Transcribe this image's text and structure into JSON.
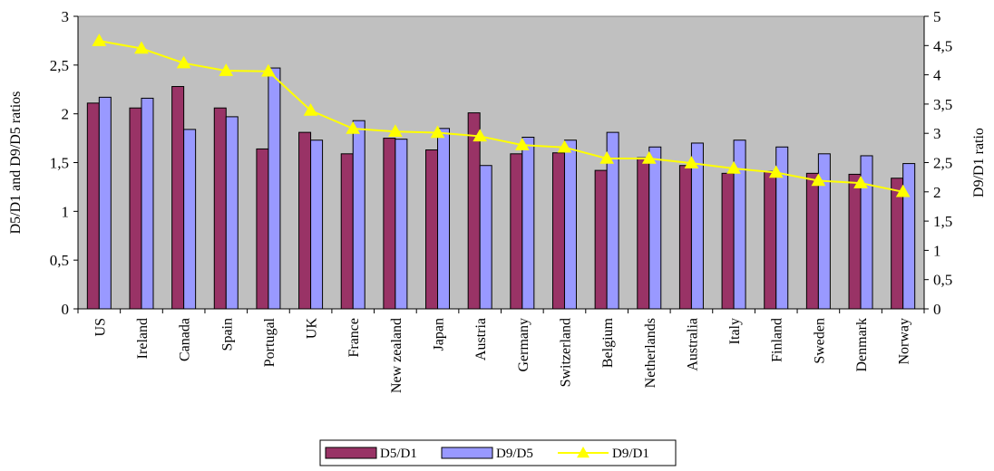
{
  "chart_data": {
    "type": "bar",
    "categories": [
      "US",
      "Ireland",
      "Canada",
      "Spain",
      "Portugal",
      "UK",
      "France",
      "New zealand",
      "Japan",
      "Austria",
      "Germany",
      "Switzerland",
      "Belgium",
      "Netherlands",
      "Australia",
      "Italy",
      "Finland",
      "Sweden",
      "Denmark",
      "Norway"
    ],
    "series": [
      {
        "name": "D5/D1",
        "type": "bar",
        "axis": "left",
        "color": "#993366",
        "values": [
          2.11,
          2.06,
          2.28,
          2.06,
          1.64,
          1.81,
          1.59,
          1.75,
          1.63,
          2.01,
          1.59,
          1.6,
          1.42,
          1.55,
          1.47,
          1.39,
          1.41,
          1.39,
          1.38,
          1.34
        ]
      },
      {
        "name": "D9/D5",
        "type": "bar",
        "axis": "left",
        "color": "#9999ff",
        "values": [
          2.17,
          2.16,
          1.84,
          1.97,
          2.47,
          1.73,
          1.93,
          1.74,
          1.85,
          1.47,
          1.76,
          1.73,
          1.81,
          1.66,
          1.7,
          1.73,
          1.66,
          1.59,
          1.57,
          1.49
        ]
      },
      {
        "name": "D9/D1",
        "type": "line",
        "axis": "right",
        "color": "#ffff00",
        "values": [
          4.58,
          4.45,
          4.2,
          4.07,
          4.06,
          3.39,
          3.08,
          3.03,
          3.01,
          2.95,
          2.8,
          2.76,
          2.57,
          2.57,
          2.49,
          2.4,
          2.33,
          2.19,
          2.15,
          2.0
        ]
      }
    ],
    "xlabel": "",
    "ylabel": "D5/D1 and D9/D5 ratios",
    "y2label": "D9/D1 ratio",
    "ylim": [
      0,
      3
    ],
    "y2lim": [
      0,
      5
    ],
    "yticks": [
      "0",
      "0,5",
      "1",
      "1,5",
      "2",
      "2,5",
      "3"
    ],
    "y2ticks": [
      "0",
      "0,5",
      "1",
      "1,5",
      "2",
      "2,5",
      "3",
      "3,5",
      "4",
      "4,5",
      "5"
    ],
    "plot_background": "#c0c0c0",
    "grid": false,
    "legend": "bottom"
  }
}
